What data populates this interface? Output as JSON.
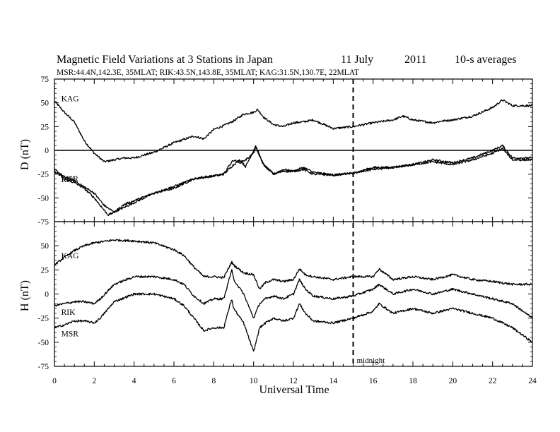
{
  "chart_data": {
    "type": "line",
    "title": "Magnetic Field Variations at 3 Stations in Japan",
    "date": "11 July",
    "year": "2011",
    "averaging": "10-s averages",
    "subtitle": "MSR:44.4N,142.3E, 35MLAT;  RIK:43.5N,143.8E, 35MLAT;  KAG:31.5N,130.7E, 22MLAT",
    "xlabel": "Universal Time",
    "xlim": [
      0,
      24
    ],
    "xticks": [
      0,
      2,
      4,
      6,
      8,
      10,
      12,
      14,
      16,
      18,
      20,
      22,
      24
    ],
    "grid": false,
    "marker": {
      "x": 15,
      "label": "midnight"
    },
    "panels": [
      {
        "id": "D",
        "ylabel": "D (nT)",
        "ylim": [
          -75,
          75
        ],
        "yticks": [
          -75,
          -50,
          -25,
          0,
          25,
          50,
          75
        ],
        "zero_line": true,
        "series": [
          {
            "name": "KAG",
            "x": [
              0,
              0.5,
              1,
              1.5,
              2,
              2.5,
              3,
              3.5,
              4,
              5,
              6,
              7,
              7.5,
              8,
              8.5,
              9,
              9.5,
              10,
              10.2,
              10.5,
              11,
              11.5,
              12,
              12.5,
              13,
              14,
              15,
              16,
              17,
              17.5,
              18,
              19,
              19.5,
              20,
              21,
              22,
              22.5,
              23,
              24
            ],
            "y": [
              52,
              40,
              30,
              10,
              -3,
              -12,
              -10,
              -8,
              -8,
              -2,
              8,
              15,
              12,
              22,
              26,
              31,
              38,
              40,
              43,
              35,
              27,
              25,
              29,
              30,
              32,
              23,
              25,
              29,
              32,
              36,
              32,
              29,
              31,
              32,
              36,
              45,
              53,
              47,
              47
            ]
          },
          {
            "name": "RIK",
            "x": [
              0,
              0.5,
              1,
              2,
              2.5,
              3,
              4,
              5,
              6,
              7,
              8,
              8.5,
              9,
              9.3,
              9.6,
              10,
              10.1,
              10.5,
              11,
              11.5,
              12,
              12.5,
              13,
              14,
              15,
              16,
              17,
              18,
              19,
              20,
              21,
              22,
              22.5,
              23,
              24
            ],
            "y": [
              -20,
              -28,
              -32,
              -45,
              -58,
              -65,
              -55,
              -45,
              -40,
              -30,
              -27,
              -25,
              -15,
              -10,
              -17,
              0,
              5,
              -15,
              -25,
              -20,
              -22,
              -18,
              -23,
              -26,
              -24,
              -18,
              -18,
              -15,
              -10,
              -13,
              -8,
              0,
              5,
              -8,
              -8
            ]
          },
          {
            "name": "MSR",
            "x": [
              0,
              0.5,
              1,
              1.5,
              2,
              2.5,
              2.7,
              3,
              3.5,
              4,
              5,
              6,
              7,
              7.5,
              8,
              8.5,
              8.8,
              9,
              9.3,
              9.6,
              10,
              10.1,
              10.5,
              11,
              11.5,
              12,
              12.5,
              13,
              14,
              15,
              16,
              17,
              18,
              19,
              20,
              21,
              22,
              22.5,
              23,
              24
            ],
            "y": [
              -22,
              -30,
              -34,
              -40,
              -50,
              -63,
              -68,
              -65,
              -57,
              -53,
              -45,
              -38,
              -30,
              -28,
              -27,
              -25,
              -15,
              -10,
              -13,
              -10,
              -3,
              3,
              -15,
              -25,
              -22,
              -22,
              -20,
              -25,
              -26,
              -24,
              -20,
              -18,
              -15,
              -12,
              -15,
              -10,
              -3,
              2,
              -10,
              -10
            ]
          }
        ]
      },
      {
        "id": "H",
        "ylabel": "H (nT)",
        "ylim": [
          -75,
          75
        ],
        "yticks": [
          -75,
          -50,
          -25,
          0,
          25,
          50
        ],
        "zero_line": false,
        "series": [
          {
            "name": "KAG",
            "x": [
              0,
              0.5,
              1,
              1.5,
              2,
              3,
              4,
              5,
              6,
              6.5,
              7,
              7.5,
              8,
              8.5,
              8.9,
              9,
              9.5,
              10,
              10.3,
              10.6,
              11,
              11.5,
              12,
              12.3,
              12.6,
              13,
              14,
              15,
              16,
              16.3,
              17,
              18,
              19,
              20,
              21,
              22,
              23,
              24
            ],
            "y": [
              30,
              38,
              45,
              50,
              53,
              56,
              55,
              53,
              46,
              40,
              28,
              18,
              18,
              17,
              33,
              30,
              22,
              20,
              5,
              12,
              15,
              13,
              15,
              26,
              20,
              18,
              15,
              18,
              18,
              26,
              15,
              18,
              15,
              20,
              15,
              13,
              10,
              10
            ]
          },
          {
            "name": "RIK",
            "x": [
              0,
              0.5,
              1,
              1.5,
              2,
              2.3,
              3,
              4,
              5,
              6,
              6.5,
              7,
              7.5,
              8,
              8.5,
              8.9,
              9,
              9.5,
              10,
              10.3,
              10.6,
              11,
              11.5,
              12,
              12.3,
              12.6,
              13,
              14,
              15,
              16,
              16.3,
              17,
              18,
              19,
              20,
              21,
              22,
              23,
              24
            ],
            "y": [
              -12,
              -10,
              -8,
              -8,
              -10,
              -5,
              10,
              18,
              18,
              15,
              10,
              -2,
              -10,
              -5,
              -5,
              25,
              15,
              0,
              -25,
              -10,
              -5,
              -2,
              -5,
              0,
              15,
              5,
              -2,
              -5,
              -2,
              5,
              10,
              0,
              5,
              0,
              5,
              0,
              -5,
              -10,
              -25
            ]
          },
          {
            "name": "MSR",
            "x": [
              0,
              0.5,
              1,
              1.5,
              2,
              2.3,
              3,
              4,
              5,
              6,
              6.5,
              7,
              7.5,
              8,
              8.5,
              8.9,
              9,
              9.5,
              10,
              10.3,
              10.6,
              11,
              11.5,
              12,
              12.3,
              12.6,
              13,
              14,
              15,
              16,
              16.3,
              17,
              18,
              19,
              20,
              21,
              22,
              23,
              24
            ],
            "y": [
              -35,
              -32,
              -28,
              -28,
              -30,
              -25,
              -8,
              0,
              0,
              -5,
              -12,
              -25,
              -38,
              -35,
              -35,
              -5,
              -15,
              -30,
              -60,
              -35,
              -30,
              -25,
              -28,
              -25,
              -10,
              -20,
              -28,
              -30,
              -25,
              -18,
              -10,
              -20,
              -15,
              -20,
              -15,
              -20,
              -25,
              -35,
              -50
            ]
          }
        ]
      }
    ]
  }
}
